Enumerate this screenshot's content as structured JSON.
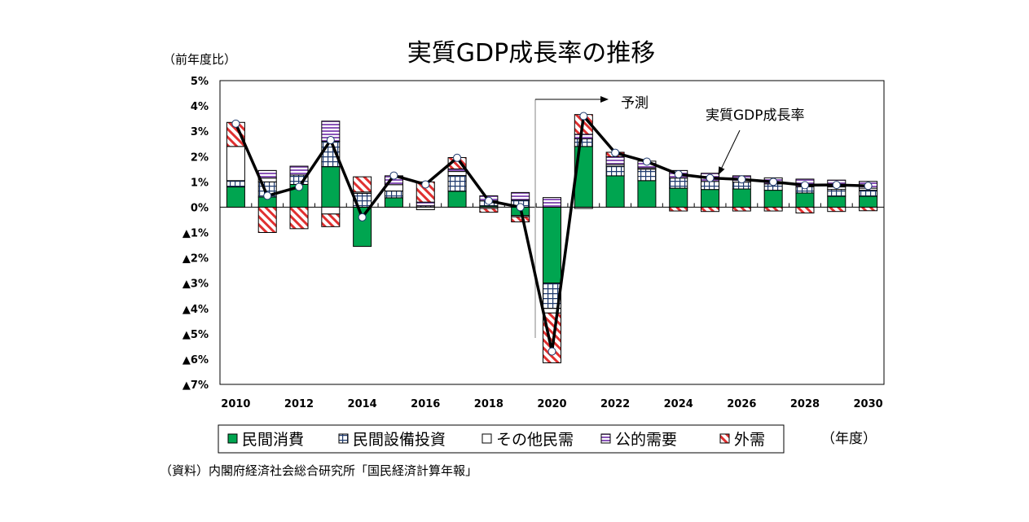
{
  "chart_data": {
    "type": "bar",
    "stacked": true,
    "title": "実質GDP成長率の推移",
    "ylabel": "（前年度比）",
    "xlabel": "（年度）",
    "source": "（資料）内閣府経済社会総合研究所「国民経済計算年報」",
    "ylim": [
      -7,
      5
    ],
    "yticks": [
      5,
      4,
      3,
      2,
      1,
      0,
      -1,
      -2,
      -3,
      -4,
      -5,
      -6,
      -7
    ],
    "ytick_labels": [
      "5%",
      "4%",
      "3%",
      "2%",
      "1%",
      "0%",
      "▲1%",
      "▲2%",
      "▲3%",
      "▲4%",
      "▲5%",
      "▲6%",
      "▲7%"
    ],
    "categories": [
      2010,
      2011,
      2012,
      2013,
      2014,
      2015,
      2016,
      2017,
      2018,
      2019,
      2020,
      2021,
      2022,
      2023,
      2024,
      2025,
      2026,
      2027,
      2028,
      2029,
      2030
    ],
    "xtick_labels": [
      "2010",
      "2012",
      "2014",
      "2016",
      "2018",
      "2020",
      "2022",
      "2024",
      "2026",
      "2028",
      "2030"
    ],
    "grid": false,
    "legend_position": "bottom",
    "forecast_label": "予測",
    "forecast_start": 2020,
    "line_label": "実質GDP成長率",
    "series": [
      {
        "name": "民間消費",
        "color": "#00a550",
        "pattern": "solid",
        "values": [
          0.8,
          0.4,
          0.9,
          1.6,
          -1.55,
          0.37,
          0,
          0.63,
          0.05,
          -0.33,
          -3.0,
          2.4,
          1.24,
          1.05,
          0.75,
          0.7,
          0.72,
          0.67,
          0.56,
          0.43,
          0.43
        ]
      },
      {
        "name": "民間設備投資",
        "color": "#1f3a6e",
        "pattern": "grid",
        "values": [
          0.25,
          0.6,
          0.37,
          1.0,
          0.55,
          0.27,
          0.05,
          0.62,
          0.2,
          0.28,
          -1.0,
          0.3,
          0.38,
          0.45,
          0.4,
          0.32,
          0.27,
          0.25,
          0.25,
          0.27,
          0.24
        ]
      },
      {
        "name": "その他民需",
        "color": "#ffffff",
        "pattern": "blank",
        "values": [
          1.35,
          0.15,
          0,
          -0.27,
          0.05,
          0.25,
          -0.1,
          0.16,
          -0.05,
          -0.05,
          -0.18,
          -0.05,
          0.07,
          0.05,
          0,
          0,
          0,
          0,
          0,
          0.1,
          0.08
        ]
      },
      {
        "name": "公的需要",
        "color": "#7030a0",
        "pattern": "hstripe",
        "values": [
          0,
          0.3,
          0.35,
          0.8,
          0,
          0.35,
          0.15,
          0.1,
          0.2,
          0.3,
          0.38,
          0.18,
          0.3,
          0.27,
          0.3,
          0.32,
          0.25,
          0.24,
          0.3,
          0.27,
          0.27
        ]
      },
      {
        "name": "外需",
        "color": "#e03030",
        "pattern": "diag",
        "values": [
          0.95,
          -1.0,
          -0.85,
          -0.5,
          0.6,
          0,
          0.8,
          0.45,
          -0.15,
          -0.2,
          -1.97,
          0.78,
          0.18,
          0,
          -0.15,
          -0.17,
          -0.15,
          -0.15,
          -0.23,
          -0.17,
          -0.14
        ]
      }
    ],
    "line": {
      "name": "実質GDP成長率",
      "values": [
        3.3,
        0.45,
        0.8,
        2.65,
        -0.4,
        1.25,
        0.9,
        1.95,
        0.25,
        0.0,
        -5.7,
        3.6,
        2.15,
        1.8,
        1.3,
        1.15,
        1.1,
        1.0,
        0.87,
        0.88,
        0.84
      ]
    }
  }
}
